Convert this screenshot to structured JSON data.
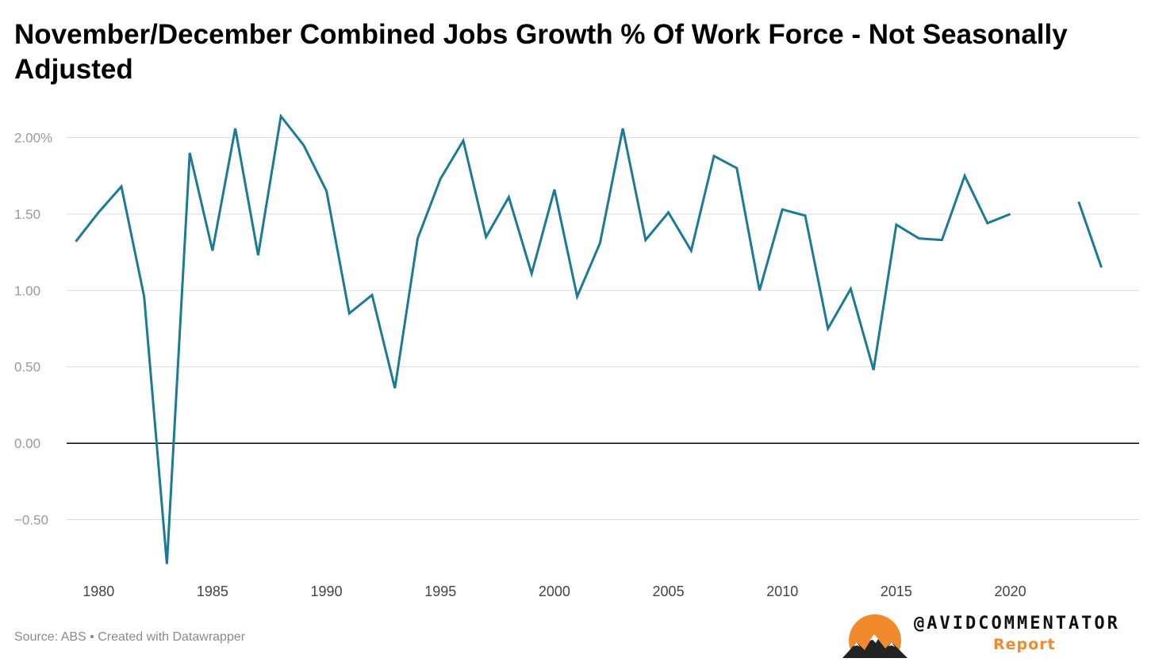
{
  "title": "November/December Combined Jobs Growth % Of Work Force - Not Seasonally Adjusted",
  "source": "Source: ABS • Created with Datawrapper",
  "branding": {
    "handle": "@AVIDCOMMENTATOR",
    "sub": "Report",
    "logo_icon": "mountain-sun-logo",
    "accent_color": "#f08a2c"
  },
  "colors": {
    "line": "#1b7a96",
    "gridline": "#dddddd",
    "zero_line": "#000000"
  },
  "chart_data": {
    "type": "line",
    "title": "November/December Combined Jobs Growth % Of Work Force - Not Seasonally Adjusted",
    "xlabel": "",
    "ylabel": "",
    "xlim": [
      1978.6,
      2024.4
    ],
    "ylim": [
      -0.85,
      2.2
    ],
    "grid": true,
    "y_ticks": [
      {
        "value": 2.0,
        "label": "2.00%"
      },
      {
        "value": 1.5,
        "label": "1.50"
      },
      {
        "value": 1.0,
        "label": "1.00"
      },
      {
        "value": 0.5,
        "label": "0.50"
      },
      {
        "value": 0.0,
        "label": "0.00"
      },
      {
        "value": -0.5,
        "label": "−0.50"
      }
    ],
    "x_ticks": [
      {
        "value": 1980,
        "label": "1980"
      },
      {
        "value": 1985,
        "label": "1985"
      },
      {
        "value": 1990,
        "label": "1990"
      },
      {
        "value": 1995,
        "label": "1995"
      },
      {
        "value": 2000,
        "label": "2000"
      },
      {
        "value": 2005,
        "label": "2005"
      },
      {
        "value": 2010,
        "label": "2010"
      },
      {
        "value": 2015,
        "label": "2015"
      },
      {
        "value": 2020,
        "label": "2020"
      }
    ],
    "series": [
      {
        "values": [
          [
            1979,
            1.32
          ],
          [
            1980,
            1.51
          ],
          [
            1981,
            1.68
          ],
          [
            1982,
            0.96
          ],
          [
            1983,
            -0.79
          ],
          [
            1984,
            1.9
          ],
          [
            1985,
            1.26
          ],
          [
            1986,
            2.06
          ],
          [
            1987,
            1.23
          ],
          [
            1988,
            2.14
          ],
          [
            1989,
            1.95
          ],
          [
            1990,
            1.65
          ],
          [
            1991,
            0.85
          ],
          [
            1992,
            0.97
          ],
          [
            1993,
            0.36
          ],
          [
            1994,
            1.34
          ],
          [
            1995,
            1.73
          ],
          [
            1996,
            1.98
          ],
          [
            1997,
            1.35
          ],
          [
            1998,
            1.61
          ],
          [
            1999,
            1.11
          ],
          [
            2000,
            1.66
          ],
          [
            2001,
            0.96
          ],
          [
            2002,
            1.31
          ],
          [
            2003,
            2.06
          ],
          [
            2004,
            1.33
          ],
          [
            2005,
            1.51
          ],
          [
            2006,
            1.26
          ],
          [
            2007,
            1.88
          ],
          [
            2008,
            1.8
          ],
          [
            2009,
            1.0
          ],
          [
            2010,
            1.53
          ],
          [
            2011,
            1.49
          ],
          [
            2012,
            0.75
          ],
          [
            2013,
            1.01
          ],
          [
            2014,
            0.48
          ],
          [
            2015,
            1.43
          ],
          [
            2016,
            1.34
          ],
          [
            2017,
            1.33
          ],
          [
            2018,
            1.75
          ],
          [
            2019,
            1.44
          ],
          [
            2020,
            1.5
          ],
          [
            2021,
            null
          ],
          [
            2022,
            null
          ],
          [
            2023,
            1.58
          ],
          [
            2024,
            1.15
          ]
        ]
      }
    ]
  }
}
